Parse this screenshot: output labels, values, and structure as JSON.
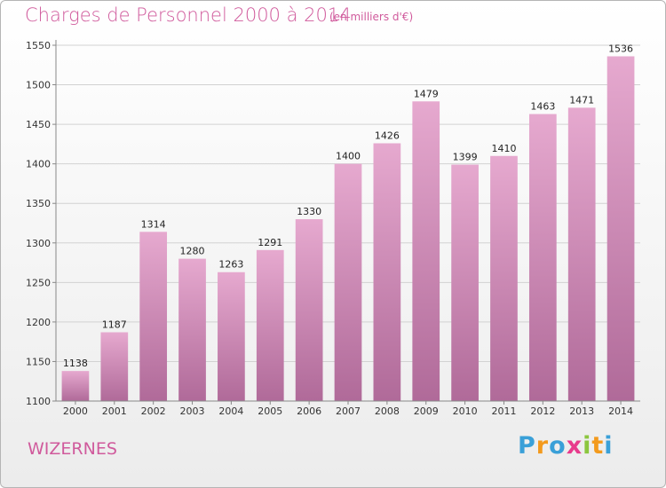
{
  "header": {
    "title": "Charges de Personnel 2000 à 2014",
    "subtitle": "(en milliers d'€)"
  },
  "footer": {
    "place": "WIZERNES",
    "logo_letters": [
      "P",
      "r",
      "o",
      "x",
      "i",
      "t",
      "i"
    ],
    "logo_colors": [
      "#3aa0d8",
      "#f39a1d",
      "#3aa0d8",
      "#e83a8c",
      "#8cc63f",
      "#f39a1d",
      "#3aa0d8"
    ]
  },
  "colors": {
    "bar_top": "#e6a9cf",
    "bar_bottom": "#b06a99",
    "text_accent": "#d05a9c"
  },
  "chart_data": {
    "type": "bar",
    "title": "Charges de Personnel 2000 à 2014",
    "xlabel": "",
    "ylabel": "",
    "categories": [
      "2000",
      "2001",
      "2002",
      "2003",
      "2004",
      "2005",
      "2006",
      "2007",
      "2008",
      "2009",
      "2010",
      "2011",
      "2012",
      "2013",
      "2014"
    ],
    "values": [
      1138,
      1187,
      1314,
      1280,
      1263,
      1291,
      1330,
      1400,
      1426,
      1479,
      1399,
      1410,
      1463,
      1471,
      1536
    ],
    "ylim": [
      1100,
      1550
    ],
    "yticks": [
      1100,
      1150,
      1200,
      1250,
      1300,
      1350,
      1400,
      1450,
      1500,
      1550
    ],
    "grid": true
  }
}
